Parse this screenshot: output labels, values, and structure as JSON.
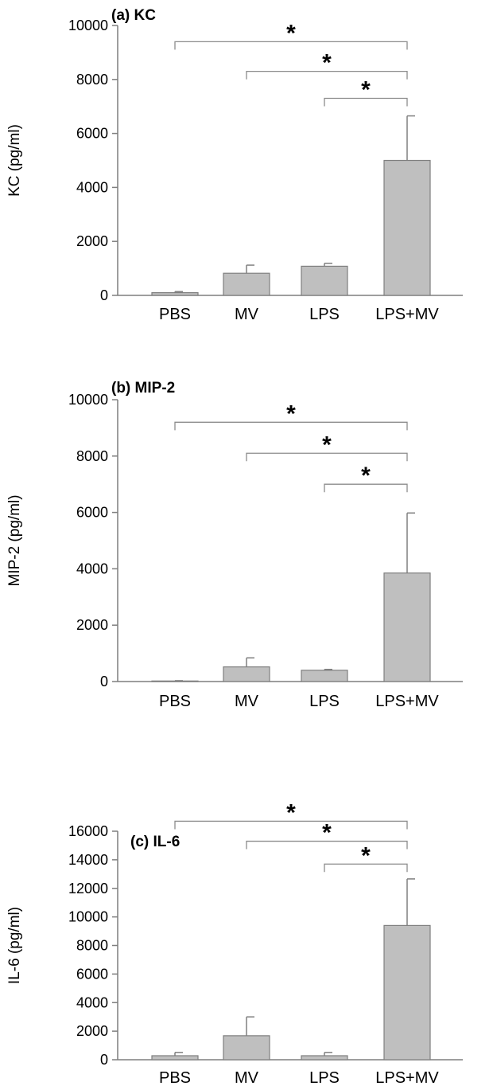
{
  "chart_data": [
    {
      "type": "bar",
      "title": "(a) KC",
      "ylabel": "KC (pg/ml)",
      "categories": [
        "PBS",
        "MV",
        "LPS",
        "LPS+MV"
      ],
      "values": [
        100,
        820,
        1080,
        5000
      ],
      "errors": [
        40,
        300,
        110,
        1650
      ],
      "ylim": [
        0,
        10000
      ],
      "yticks": [
        0,
        2000,
        4000,
        6000,
        8000,
        10000
      ],
      "significance": [
        {
          "from": "PBS",
          "to": "LPS+MV",
          "y": 9400,
          "label": "*"
        },
        {
          "from": "MV",
          "to": "LPS+MV",
          "y": 8300,
          "label": "*"
        },
        {
          "from": "LPS",
          "to": "LPS+MV",
          "y": 7300,
          "label": "*"
        }
      ]
    },
    {
      "type": "bar",
      "title": "(b) MIP-2",
      "ylabel": "MIP-2 (pg/ml)",
      "categories": [
        "PBS",
        "MV",
        "LPS",
        "LPS+MV"
      ],
      "values": [
        20,
        520,
        400,
        3850
      ],
      "errors": [
        10,
        320,
        30,
        2130
      ],
      "ylim": [
        0,
        10000
      ],
      "yticks": [
        0,
        2000,
        4000,
        6000,
        8000,
        10000
      ],
      "significance": [
        {
          "from": "PBS",
          "to": "LPS+MV",
          "y": 9200,
          "label": "*"
        },
        {
          "from": "MV",
          "to": "LPS+MV",
          "y": 8100,
          "label": "*"
        },
        {
          "from": "LPS",
          "to": "LPS+MV",
          "y": 7000,
          "label": "*"
        }
      ]
    },
    {
      "type": "bar",
      "title": "(c) IL-6",
      "ylabel": "IL-6 (pg/ml)",
      "categories": [
        "PBS",
        "MV",
        "LPS",
        "LPS+MV"
      ],
      "values": [
        280,
        1680,
        280,
        9400
      ],
      "errors": [
        230,
        1320,
        230,
        3260
      ],
      "ylim": [
        0,
        16000
      ],
      "yticks": [
        0,
        2000,
        4000,
        6000,
        8000,
        10000,
        12000,
        14000,
        16000
      ],
      "significance": [
        {
          "from": "PBS",
          "to": "LPS+MV",
          "y": 16700,
          "label": "*"
        },
        {
          "from": "MV",
          "to": "LPS+MV",
          "y": 15300,
          "label": "*"
        },
        {
          "from": "LPS",
          "to": "LPS+MV",
          "y": 13700,
          "label": "*"
        }
      ]
    }
  ]
}
